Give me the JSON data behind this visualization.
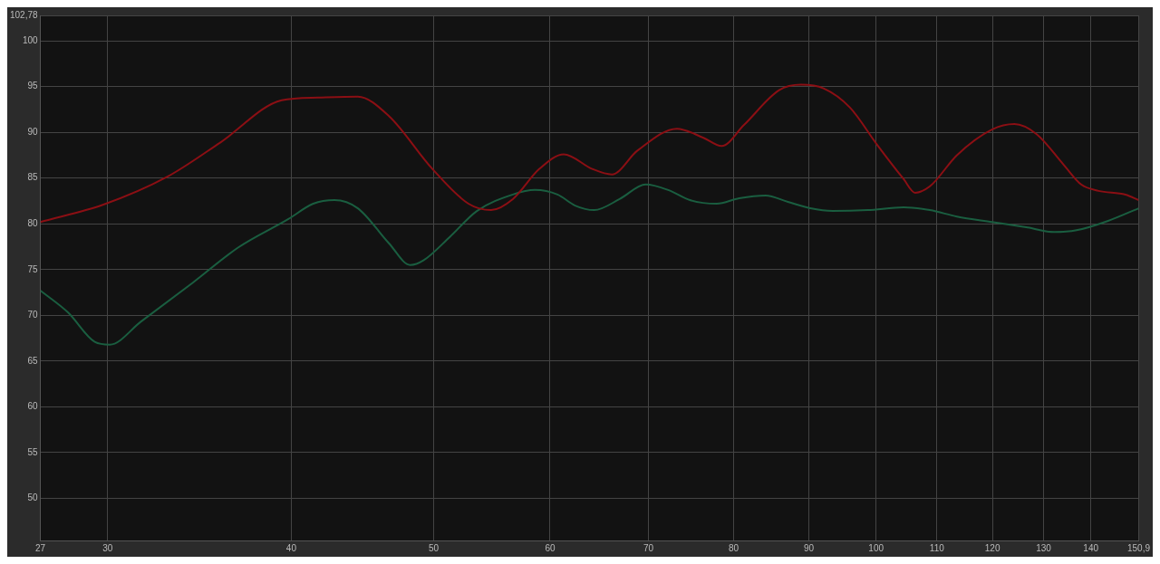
{
  "chart_data": {
    "type": "line",
    "log": "x",
    "grid": true,
    "xlim": [
      27,
      150.9
    ],
    "ylim": [
      45.4,
      102.78
    ],
    "xticks": [
      27,
      30,
      40,
      50,
      60,
      70,
      80,
      90,
      100,
      110,
      120,
      130,
      140,
      {
        "value": 150.9,
        "label": "150,9"
      }
    ],
    "yticks": [
      50,
      55,
      60,
      65,
      70,
      75,
      80,
      85,
      90,
      95,
      100,
      {
        "value": 102.78,
        "label": "102,78"
      }
    ],
    "series": [
      {
        "color": "#8b0f14",
        "x": [
          27,
          29.8,
          32.9,
          35.8,
          39.4,
          41.7,
          44.4,
          46.6,
          49.9,
          52.8,
          54.7,
          56.6,
          59.0,
          61.3,
          64.1,
          66.1,
          68.8,
          73.2,
          76.3,
          78.5,
          81.3,
          85.9,
          88.9,
          92.1,
          96.0,
          100.1,
          104.4,
          106.3,
          108.8,
          113.5,
          119.9,
          124.2,
          128.6,
          134.1,
          137.9,
          141.7,
          147.8,
          150.9
        ],
        "values": [
          80.2,
          82.1,
          85.1,
          88.9,
          93.5,
          93.8,
          93.9,
          91.8,
          86.0,
          82.2,
          81.5,
          82.7,
          86.0,
          87.6,
          86.0,
          85.4,
          88.0,
          90.4,
          89.4,
          88.5,
          90.8,
          94.6,
          95.2,
          94.8,
          92.7,
          88.7,
          84.9,
          83.4,
          84.1,
          87.5,
          90.3,
          90.9,
          89.8,
          86.5,
          84.3,
          83.6,
          83.2,
          82.6
        ]
      },
      {
        "color": "#1a5e40",
        "x": [
          27,
          28.2,
          29.4,
          30.1,
          31.6,
          34.3,
          36.8,
          39.8,
          41.4,
          42.8,
          44.4,
          46.6,
          48.2,
          49.2,
          51.3,
          53.5,
          56.6,
          58.6,
          60.7,
          62.4,
          64.3,
          66.9,
          69.7,
          72.2,
          74.7,
          77.9,
          80.7,
          84.1,
          87.1,
          90.2,
          93.4,
          98.7,
          104.4,
          108.8,
          113.5,
          119.9,
          126.8,
          132.2,
          136.9,
          143.7,
          150.9
        ],
        "values": [
          72.7,
          70.3,
          67.1,
          66.8,
          69.3,
          73.6,
          77.4,
          80.5,
          82.2,
          82.6,
          81.7,
          77.9,
          75.5,
          76.0,
          78.6,
          81.4,
          83.2,
          83.7,
          83.2,
          82.0,
          81.5,
          82.7,
          84.3,
          83.7,
          82.6,
          82.2,
          82.8,
          83.1,
          82.4,
          81.7,
          81.4,
          81.5,
          81.8,
          81.5,
          80.8,
          80.2,
          79.6,
          79.1,
          79.3,
          80.3,
          81.7
        ]
      }
    ]
  }
}
